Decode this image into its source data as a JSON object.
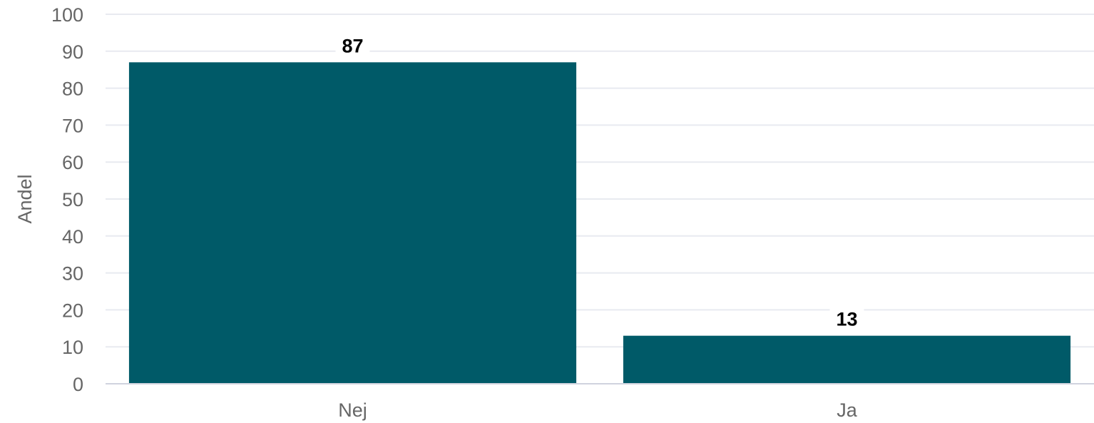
{
  "chart_data": {
    "type": "bar",
    "categories": [
      "Nej",
      "Ja"
    ],
    "values": [
      87,
      13
    ],
    "data_labels": [
      "87",
      "13"
    ],
    "title": "",
    "xlabel": "",
    "ylabel": "Andel",
    "ylim": [
      0,
      100
    ],
    "yticks": [
      0,
      10,
      20,
      30,
      40,
      50,
      60,
      70,
      80,
      90,
      100
    ],
    "grid": true,
    "legend": "none",
    "colors": {
      "bar": "#005A68",
      "grid": "#E8EAF0",
      "axis": "#D0D3DE",
      "tick_text": "#666666",
      "label_text": "#000000"
    }
  }
}
